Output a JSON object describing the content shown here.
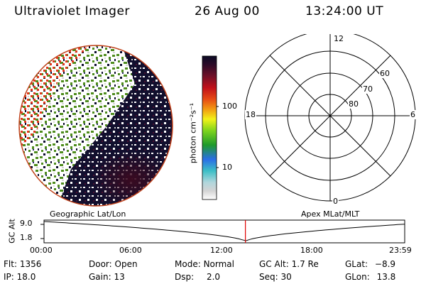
{
  "header": {
    "instrument": "Ultraviolet Imager",
    "date": "26 Aug 00",
    "time": "13:24:00 UT"
  },
  "colorbar": {
    "unit_label": "photon cm⁻²s⁻¹",
    "tick_labels": [
      "100",
      "10"
    ]
  },
  "polar_grid": {
    "mlt_labels": {
      "top": "12",
      "left": "18",
      "right": "6",
      "bottom": "0"
    },
    "lat_labels": [
      "60",
      "70",
      "80"
    ]
  },
  "footer_titles": {
    "left": "Geographic Lat/Lon",
    "right": "Apex MLat/MLT"
  },
  "altitude_plot": {
    "axis_label": "GC Alt",
    "y_ticks": [
      "9.0",
      "1.8"
    ],
    "x_ticks": [
      "00:00",
      "06:00",
      "12:00",
      "18:00",
      "23:59"
    ],
    "marker_time": "13:24",
    "marker_color": "#e00000"
  },
  "status": {
    "row1": [
      {
        "key": "Flt:",
        "value": "1356"
      },
      {
        "key": "Door:",
        "value": "Open"
      },
      {
        "key": "Mode:",
        "value": "Normal"
      },
      {
        "key": "GC Alt:",
        "value": "1.7 Re"
      },
      {
        "key": "GLat:",
        "value": "−8.9"
      }
    ],
    "row2": [
      {
        "key": "IP:",
        "value": "18.0"
      },
      {
        "key": "Gain:",
        "value": "13"
      },
      {
        "key": "Dsp:",
        "value": "2.0"
      },
      {
        "key": "Seq:",
        "value": "30"
      },
      {
        "key": "GLon:",
        "value": "13.8"
      }
    ]
  }
}
